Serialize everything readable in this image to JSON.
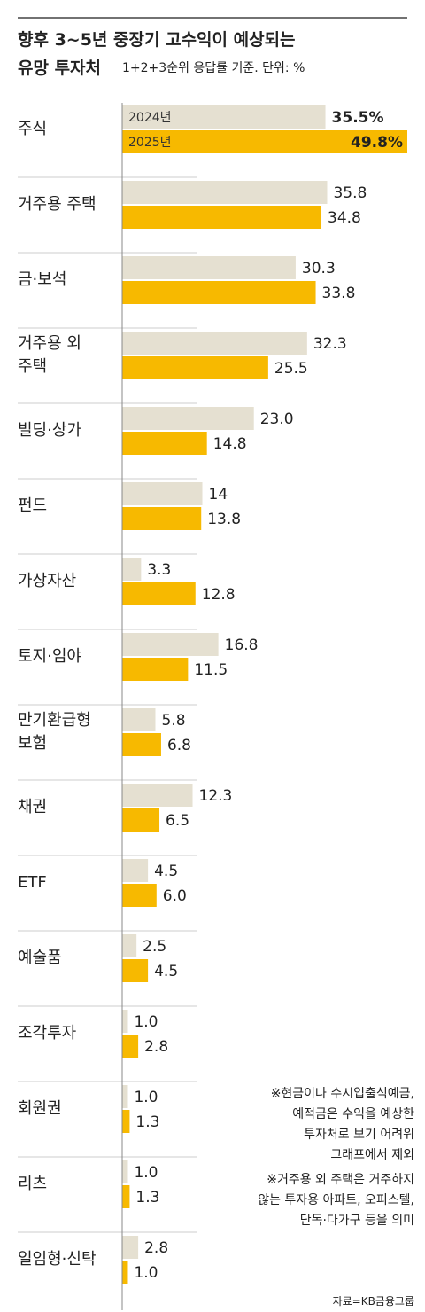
{
  "chart_data": {
    "type": "bar",
    "orientation": "horizontal",
    "title": "향후 3~5년 중장기 고수익이 예상되는",
    "title_line2": "유망 투자처",
    "subtitle": "1+2+3순위 응답률 기준. 단위: %",
    "categories": [
      "주식",
      "거주용 주택",
      "금·보석",
      "거주용 외\n주택",
      "빌딩·상가",
      "펀드",
      "가상자산",
      "토지·임야",
      "만기환급형\n보험",
      "채권",
      "ETF",
      "예술품",
      "조각투자",
      "회원권",
      "리츠",
      "일임형·신탁"
    ],
    "series": [
      {
        "name": "2024년",
        "color": "#e5e0d1",
        "values": [
          35.5,
          35.8,
          30.3,
          32.3,
          23.0,
          14,
          3.3,
          16.8,
          5.8,
          12.3,
          4.5,
          2.5,
          1.0,
          1.0,
          1.0,
          2.8
        ],
        "value_labels": [
          "35.5%",
          "35.8",
          "30.3",
          "32.3",
          "23.0",
          "14",
          "3.3",
          "16.8",
          "5.8",
          "12.3",
          "4.5",
          "2.5",
          "1.0",
          "1.0",
          "1.0",
          "2.8"
        ]
      },
      {
        "name": "2025년",
        "color": "#f7b900",
        "values": [
          49.8,
          34.8,
          33.8,
          25.5,
          14.8,
          13.8,
          12.8,
          11.5,
          6.8,
          6.5,
          6.0,
          4.5,
          2.8,
          1.3,
          1.3,
          1.0
        ],
        "value_labels": [
          "49.8%",
          "34.8",
          "33.8",
          "25.5",
          "14.8",
          "13.8",
          "12.8",
          "11.5",
          "6.8",
          "6.5",
          "6.0",
          "4.5",
          "2.8",
          "1.3",
          "1.3",
          "1.0"
        ]
      }
    ],
    "notes": [
      "※현금이나 수시입출식예금,\n예적금은 수익을 예상한\n투자처로 보기 어려워\n그래프에서 제외",
      "※거주용 외 주택은 거주하지\n않는 투자용 아파트, 오피스텔,\n단독·다가구 등을 의미"
    ],
    "source": "자료=KB금융그룹"
  }
}
